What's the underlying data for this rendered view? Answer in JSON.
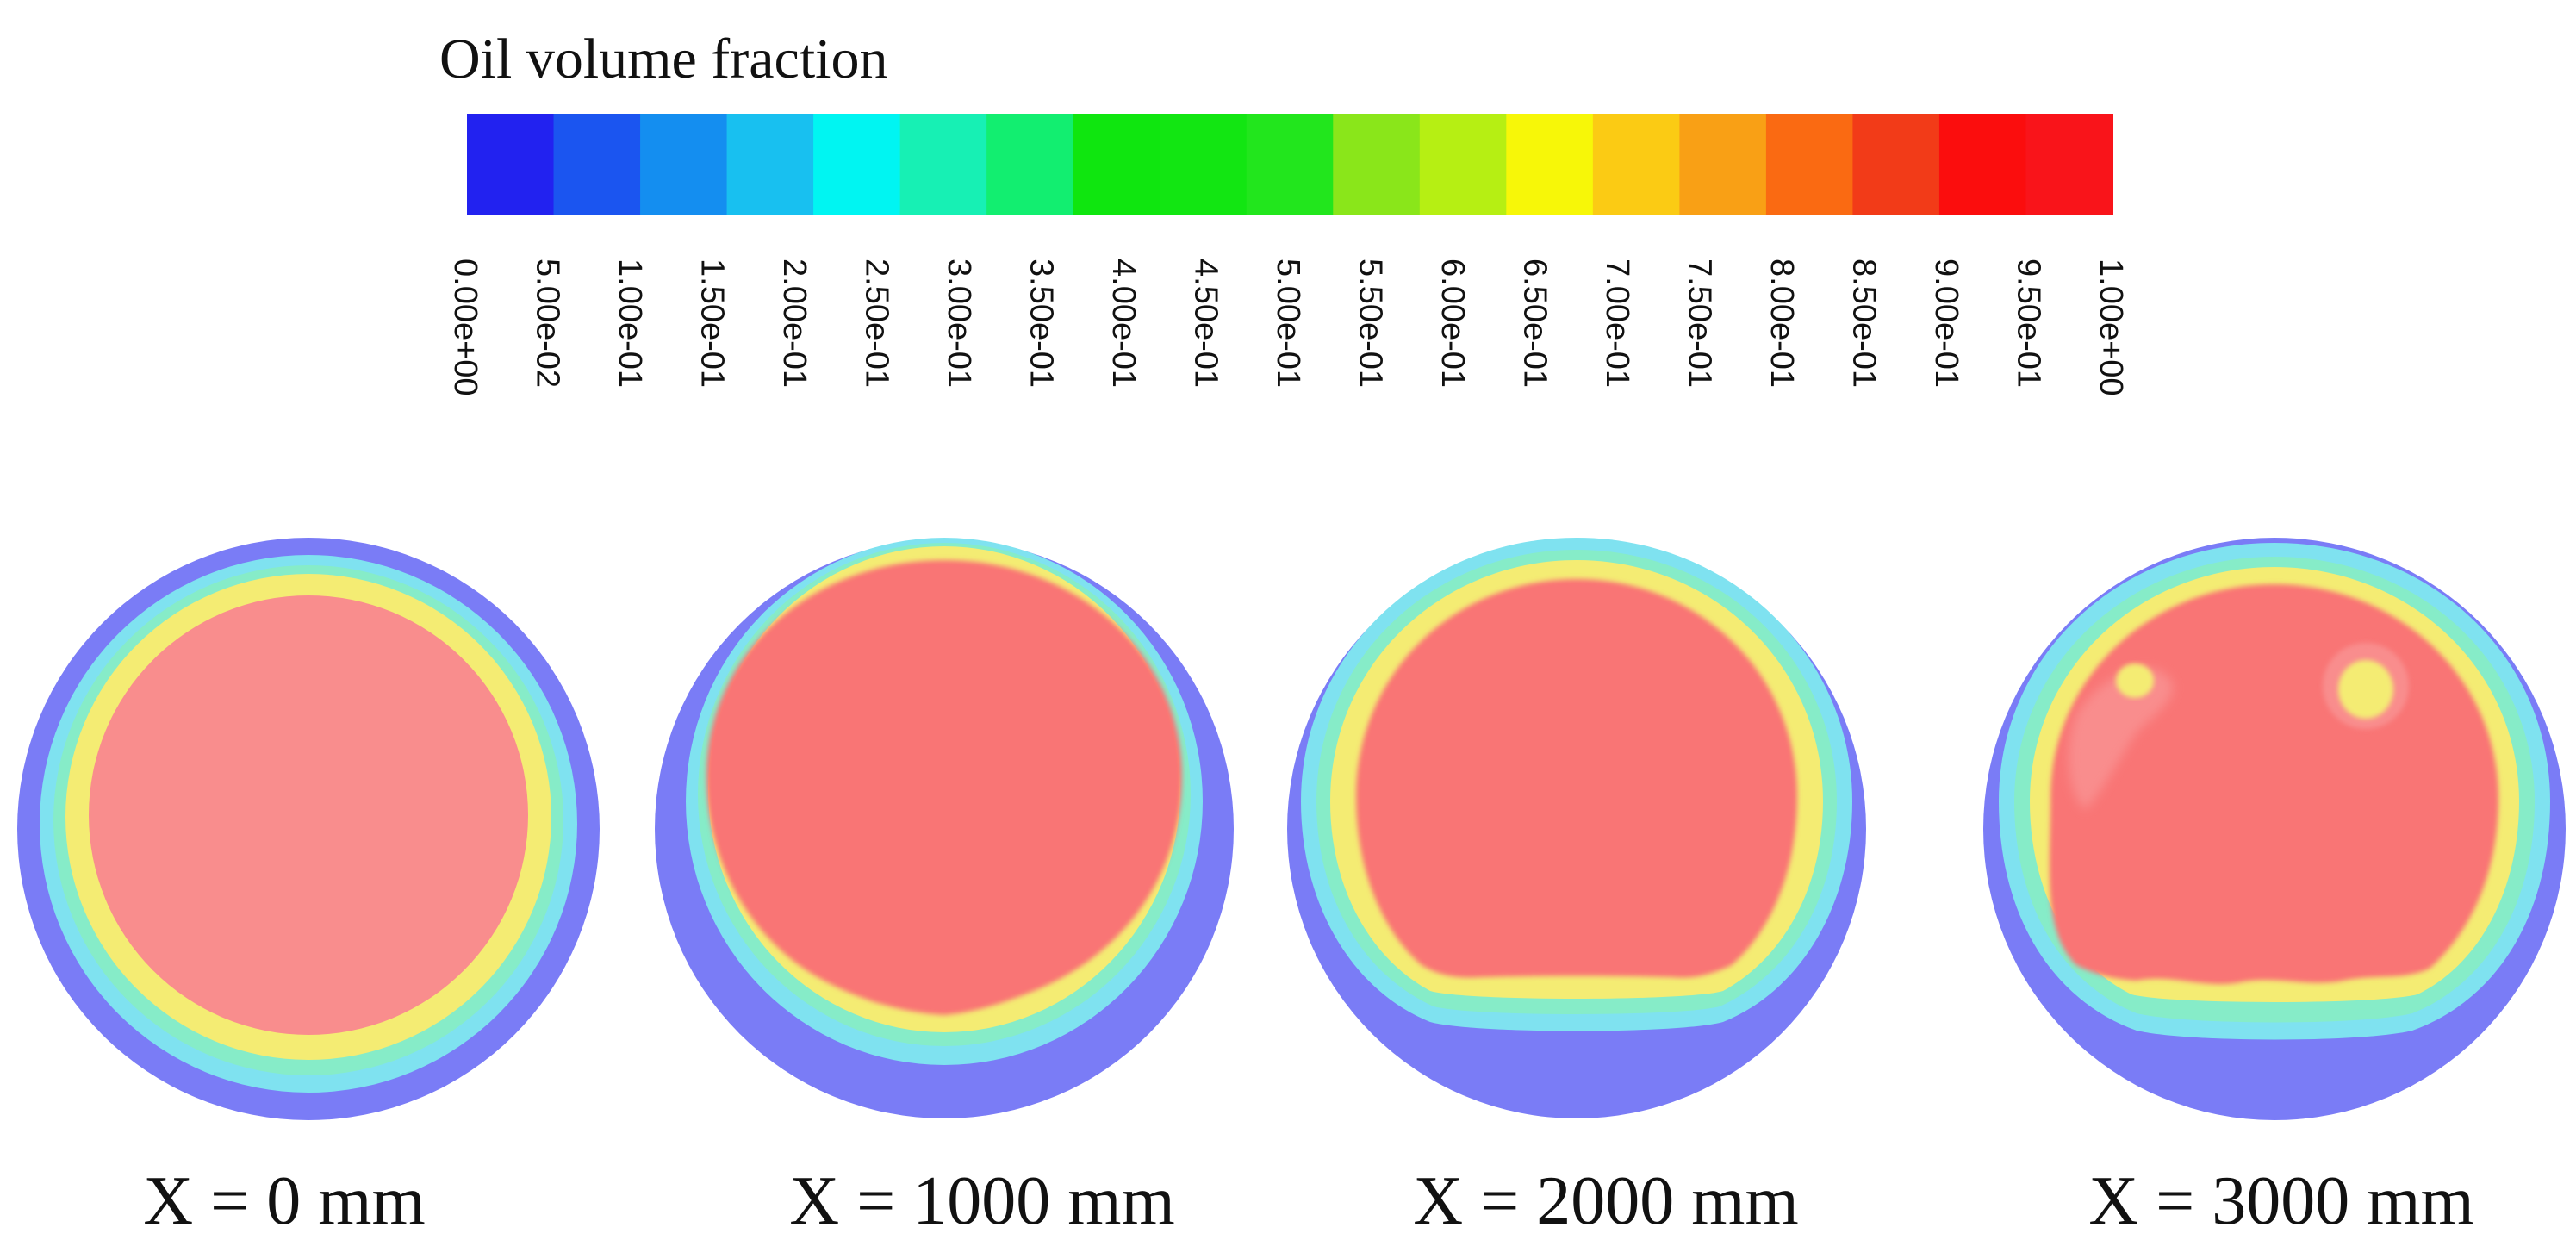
{
  "colorbar": {
    "title": "Oil volume fraction",
    "colors": [
      "#2222f0",
      "#1b55f0",
      "#148ef0",
      "#18c0f0",
      "#00f5f2",
      "#17f0b4",
      "#12ee70",
      "#0fe60f",
      "#12e612",
      "#22e61d",
      "#8ae61a",
      "#b6ef13",
      "#f7f708",
      "#fbcb14",
      "#f9a015",
      "#fa6a12",
      "#f23b18",
      "#fb0d0d",
      "#f9141a"
    ],
    "ticks": [
      "0.00e+00",
      "5.00e-02",
      "1.00e-01",
      "1.50e-01",
      "2.00e-01",
      "2.50e-01",
      "3.00e-01",
      "3.50e-01",
      "4.00e-01",
      "4.50e-01",
      "5.00e-01",
      "5.50e-01",
      "6.00e-01",
      "6.50e-01",
      "7.00e-01",
      "7.50e-01",
      "8.00e-01",
      "8.50e-01",
      "9.00e-01",
      "9.50e-01",
      "1.00e+00"
    ]
  },
  "contour_colors": {
    "outer": "#7a7cf6",
    "cyan": "#7fe2f0",
    "teal": "#86ecc8",
    "yellow": "#f4ec73",
    "core_light": "#f98d8d",
    "core": "#f97474"
  },
  "sections": [
    {
      "label": "X = 0 mm"
    },
    {
      "label": "X = 1000 mm"
    },
    {
      "label": "X = 2000 mm"
    },
    {
      "label": "X = 3000 mm"
    }
  ]
}
